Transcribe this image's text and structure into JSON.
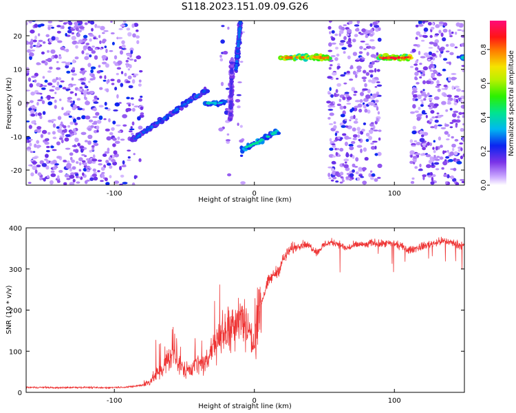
{
  "title": "S118.2023.151.09.09.G26",
  "chart_data": [
    {
      "type": "heatmap",
      "xlabel": "Height of straight line (km)",
      "ylabel": "Frequency (Hz)",
      "xlim": [
        -163,
        150
      ],
      "ylim": [
        -24.5,
        24.5
      ],
      "xticks": [
        -100,
        0,
        100
      ],
      "xtick_labels": [
        "-100",
        "0",
        "100"
      ],
      "yticks": [
        -20,
        -10,
        0,
        10,
        20
      ],
      "ytick_labels": [
        "-20",
        "-10",
        "0",
        "10",
        "20"
      ],
      "colorbar": {
        "label": "Normalized spectral amplitude",
        "range": [
          0,
          0.97
        ],
        "ticks": [
          0,
          0.2,
          0.4,
          0.6,
          0.8
        ],
        "tick_labels": [
          "0.0",
          "0.2",
          "0.4",
          "0.6",
          "0.8"
        ],
        "colormap": "rainbow (white-violet-blue-cyan-green-yellow-red-magenta)"
      },
      "noise_regions": [
        {
          "x": [
            -163,
            -112
          ],
          "density": "high"
        },
        {
          "x": [
            -112,
            -80
          ],
          "density": "medium"
        },
        {
          "x": [
            -24,
            -18
          ],
          "density": "low"
        },
        {
          "x": [
            -12,
            -8
          ],
          "density": "low"
        },
        {
          "x": [
            53,
            90
          ],
          "density": "high"
        },
        {
          "x": [
            112,
            150
          ],
          "density": "high"
        }
      ],
      "features": [
        {
          "name": "rising streak",
          "x": [
            -87,
            -34
          ],
          "y": [
            -11,
            4
          ],
          "amplitude": 0.3
        },
        {
          "name": "flat segment",
          "x": [
            -35,
            -21
          ],
          "y": [
            0,
            0
          ],
          "amplitude": 0.4
        },
        {
          "name": "short vertical band",
          "x": [
            -17,
            -16
          ],
          "y": [
            -5,
            13
          ],
          "amplitude": 0.2
        },
        {
          "name": "short vertical band",
          "x": [
            -13,
            -10
          ],
          "y": [
            10,
            24
          ],
          "amplitude": 0.3
        },
        {
          "name": "low rising streak",
          "x": [
            -9,
            17
          ],
          "y": [
            -14,
            -8.5
          ],
          "amplitude": 0.45
        },
        {
          "name": "horizontal band",
          "x": [
            19,
            54
          ],
          "y": [
            13.5,
            13.5
          ],
          "amplitude": 0.85
        },
        {
          "name": "horizontal band",
          "x": [
            89,
            112
          ],
          "y": [
            13.5,
            13.5
          ],
          "amplitude": 0.95
        },
        {
          "name": "edge blob",
          "x": [
            148,
            150
          ],
          "y": [
            13.5,
            13.5
          ],
          "amplitude": 0.4
        }
      ]
    },
    {
      "type": "line",
      "xlabel": "Height of straight line (km)",
      "ylabel": "SNR (10 * v/v)",
      "xlim": [
        -163,
        150
      ],
      "ylim": [
        0,
        400
      ],
      "xticks": [
        -100,
        0,
        100
      ],
      "xtick_labels": [
        "-100",
        "0",
        "100"
      ],
      "yticks": [
        0,
        100,
        200,
        300,
        400
      ],
      "ytick_labels": [
        "0",
        "100",
        "200",
        "300",
        "400"
      ],
      "color": "#ee3333",
      "series": [
        {
          "x": [
            -163,
            -150,
            -140,
            -130,
            -120,
            -110,
            -100,
            -90,
            -85,
            -80,
            -75,
            -70,
            -65,
            -60,
            -55,
            -50,
            -45,
            -40,
            -35,
            -30,
            -25,
            -20,
            -15,
            -10,
            -5,
            0,
            5,
            10,
            15,
            18,
            20,
            25,
            30,
            35,
            40,
            45,
            50,
            55,
            60,
            65,
            70,
            75,
            80,
            85,
            90,
            95,
            100,
            105,
            110,
            115,
            120,
            125,
            130,
            135,
            140,
            145,
            150
          ],
          "y": [
            12,
            12,
            11,
            12,
            12,
            11,
            12,
            13,
            15,
            18,
            25,
            45,
            60,
            90,
            70,
            55,
            60,
            70,
            65,
            110,
            140,
            150,
            170,
            190,
            160,
            110,
            220,
            270,
            290,
            300,
            320,
            345,
            355,
            360,
            355,
            340,
            360,
            365,
            362,
            350,
            355,
            360,
            358,
            365,
            360,
            362,
            360,
            355,
            345,
            350,
            355,
            360,
            365,
            368,
            365,
            360,
            355
          ]
        }
      ]
    }
  ]
}
